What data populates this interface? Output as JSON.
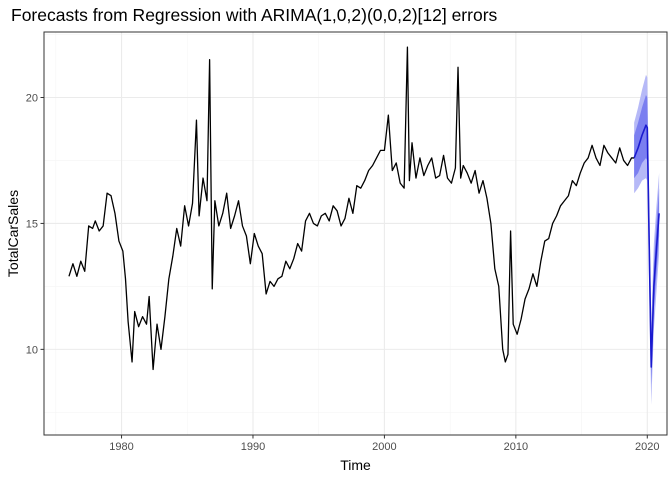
{
  "chart_data": {
    "type": "line",
    "title": "Forecasts from Regression with ARIMA(1,0,2)(0,0,2)[12] errors",
    "xlabel": "Time",
    "ylabel": "TotalCarSales",
    "xlim": [
      1974.1,
      2021.5
    ],
    "ylim": [
      6.6,
      22.6
    ],
    "x_ticks": [
      1980,
      1990,
      2000,
      2010,
      2020
    ],
    "x_tick_labels": [
      "1980",
      "1990",
      "2000",
      "2010",
      "2020"
    ],
    "y_ticks": [
      10,
      15,
      20
    ],
    "y_tick_labels": [
      "10",
      "15",
      "20"
    ],
    "grid": true,
    "legend": "none",
    "colors": {
      "history": "#000000",
      "forecast": "#1a1acf",
      "band80": "#7b7ff0",
      "band95": "#b6b9f7",
      "grid_major": "#ebebeb",
      "grid_minor": "#f5f5f5",
      "panel_border": "#333333",
      "tick_label": "#4d4d4d"
    },
    "series": [
      {
        "role": "history",
        "x": [
          1976.0,
          1976.3,
          1976.6,
          1976.9,
          1977.2,
          1977.5,
          1977.8,
          1978.0,
          1978.3,
          1978.6,
          1978.9,
          1979.2,
          1979.5,
          1979.8,
          1980.1,
          1980.3,
          1980.5,
          1980.8,
          1981.0,
          1981.3,
          1981.6,
          1981.9,
          1982.1,
          1982.4,
          1982.7,
          1983.0,
          1983.3,
          1983.6,
          1983.9,
          1984.2,
          1984.5,
          1984.8,
          1985.1,
          1985.4,
          1985.7,
          1985.9,
          1986.2,
          1986.5,
          1986.7,
          1986.9,
          1987.1,
          1987.4,
          1987.7,
          1988.0,
          1988.3,
          1988.6,
          1988.9,
          1989.2,
          1989.5,
          1989.8,
          1990.1,
          1990.4,
          1990.7,
          1991.0,
          1991.3,
          1991.6,
          1991.9,
          1992.2,
          1992.5,
          1992.8,
          1993.1,
          1993.4,
          1993.7,
          1994.0,
          1994.3,
          1994.6,
          1994.9,
          1995.2,
          1995.5,
          1995.8,
          1996.1,
          1996.4,
          1996.7,
          1997.0,
          1997.3,
          1997.6,
          1997.9,
          1998.2,
          1998.5,
          1998.8,
          1999.1,
          1999.4,
          1999.7,
          2000.0,
          2000.3,
          2000.6,
          2000.9,
          2001.2,
          2001.5,
          2001.75,
          2001.9,
          2002.1,
          2002.4,
          2002.7,
          2003.0,
          2003.3,
          2003.6,
          2003.9,
          2004.2,
          2004.5,
          2004.8,
          2005.1,
          2005.4,
          2005.6,
          2005.8,
          2006.0,
          2006.3,
          2006.6,
          2006.9,
          2007.2,
          2007.5,
          2007.8,
          2008.1,
          2008.4,
          2008.7,
          2009.0,
          2009.2,
          2009.4,
          2009.6,
          2009.8,
          2010.1,
          2010.4,
          2010.7,
          2011.0,
          2011.3,
          2011.6,
          2011.9,
          2012.2,
          2012.5,
          2012.8,
          2013.1,
          2013.4,
          2013.7,
          2014.0,
          2014.3,
          2014.6,
          2014.9,
          2015.2,
          2015.5,
          2015.8,
          2016.1,
          2016.4,
          2016.7,
          2017.0,
          2017.3,
          2017.6,
          2017.9,
          2018.2,
          2018.5,
          2018.8,
          2019.0
        ],
        "y": [
          12.9,
          13.4,
          12.9,
          13.5,
          13.1,
          14.9,
          14.8,
          15.1,
          14.7,
          14.9,
          16.2,
          16.1,
          15.4,
          14.3,
          13.9,
          12.8,
          11.1,
          9.5,
          11.5,
          10.9,
          11.3,
          11.0,
          12.1,
          9.2,
          11.0,
          10.0,
          11.3,
          12.8,
          13.7,
          14.8,
          14.1,
          15.7,
          14.9,
          15.8,
          19.1,
          15.3,
          16.8,
          15.9,
          21.5,
          12.4,
          15.9,
          14.9,
          15.4,
          16.2,
          14.8,
          15.3,
          15.9,
          14.9,
          14.5,
          13.4,
          14.6,
          14.1,
          13.8,
          12.2,
          12.7,
          12.5,
          12.8,
          12.9,
          13.5,
          13.2,
          13.6,
          14.2,
          13.9,
          15.1,
          15.4,
          15.0,
          14.9,
          15.3,
          15.4,
          15.1,
          15.7,
          15.5,
          14.9,
          15.2,
          16.0,
          15.4,
          16.5,
          16.4,
          16.7,
          17.1,
          17.3,
          17.6,
          17.9,
          17.9,
          19.3,
          17.1,
          17.4,
          16.6,
          16.4,
          22.0,
          16.7,
          18.2,
          16.8,
          17.6,
          16.9,
          17.3,
          17.6,
          16.8,
          16.9,
          17.7,
          16.8,
          16.6,
          17.2,
          21.2,
          16.8,
          17.3,
          17.0,
          16.6,
          17.1,
          16.2,
          16.7,
          16.0,
          15.0,
          13.2,
          12.5,
          10.0,
          9.5,
          9.8,
          14.7,
          11.0,
          10.6,
          11.2,
          12.0,
          12.4,
          13.0,
          12.5,
          13.5,
          14.3,
          14.4,
          15.0,
          15.3,
          15.7,
          15.9,
          16.1,
          16.7,
          16.5,
          17.0,
          17.4,
          17.6,
          18.1,
          17.6,
          17.3,
          18.1,
          17.8,
          17.6,
          17.4,
          18.0,
          17.5,
          17.3,
          17.6,
          17.6
        ]
      },
      {
        "role": "forecast",
        "x": [
          2019.0,
          2019.3,
          2019.6,
          2019.9,
          2020.0,
          2020.3,
          2020.5,
          2020.7,
          2020.9
        ],
        "y": [
          17.6,
          18.0,
          18.5,
          18.9,
          18.8,
          9.3,
          12.5,
          14.0,
          15.4
        ],
        "lo80": [
          16.8,
          17.0,
          17.4,
          17.6,
          17.5,
          8.6,
          11.6,
          13.0,
          14.5
        ],
        "hi80": [
          18.5,
          19.0,
          19.6,
          20.1,
          20.0,
          10.2,
          13.4,
          15.0,
          16.4
        ],
        "lo95": [
          16.2,
          16.4,
          16.7,
          16.8,
          16.7,
          7.8,
          10.8,
          12.3,
          13.8
        ],
        "hi95": [
          19.0,
          19.6,
          20.3,
          20.9,
          20.8,
          11.0,
          14.2,
          15.7,
          17.0
        ]
      }
    ]
  }
}
